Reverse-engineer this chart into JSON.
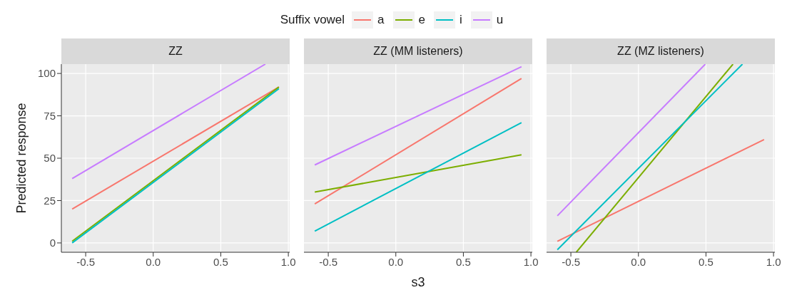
{
  "chart_data": [
    {
      "type": "line",
      "title": "ZZ",
      "ylabel": "Predicted response",
      "legend": "top",
      "legend_title": "Suffix vowel",
      "grid": true,
      "marker": "none",
      "line_style": "solid",
      "xlim": [
        -0.68,
        1.01
      ],
      "ylim": [
        -5.5,
        105.5
      ],
      "xticks": [
        {
          "value": -0.5,
          "label": "-0.5"
        },
        {
          "value": 0,
          "label": "0.0"
        },
        {
          "value": 0.5,
          "label": "0.5"
        },
        {
          "value": 1,
          "label": "1.0"
        }
      ],
      "yticks": [
        0,
        25,
        50,
        75,
        100
      ],
      "series": [
        {
          "name": "a",
          "color": "#f8766d",
          "x": [
            -0.6,
            0.93
          ],
          "values": [
            20,
            92
          ]
        },
        {
          "name": "e",
          "color": "#7cae00",
          "x": [
            -0.6,
            0.93
          ],
          "values": [
            1,
            92
          ]
        },
        {
          "name": "i",
          "color": "#00bfc4",
          "x": [
            -0.6,
            0.93
          ],
          "values": [
            0,
            91
          ]
        },
        {
          "name": "u",
          "color": "#c77cff",
          "x": [
            -0.6,
            0.83
          ],
          "values": [
            38,
            105.5
          ]
        }
      ]
    },
    {
      "type": "line",
      "title": "ZZ (MM listeners)",
      "xlabel": "s3",
      "grid": true,
      "marker": "none",
      "line_style": "solid",
      "tick_labels": "x",
      "xlim": [
        -0.68,
        1.01
      ],
      "ylim": [
        -5.5,
        105.5
      ],
      "xticks": [
        {
          "value": -0.5,
          "label": "-0.5"
        },
        {
          "value": 0,
          "label": "0.0"
        },
        {
          "value": 0.5,
          "label": "0.5"
        },
        {
          "value": 1,
          "label": "1.0"
        }
      ],
      "yticks": [
        0,
        25,
        50,
        75,
        100
      ],
      "series": [
        {
          "color": "#f8766d",
          "x": [
            -0.6,
            0.93
          ],
          "values": [
            23,
            97
          ]
        },
        {
          "color": "#7cae00",
          "x": [
            -0.6,
            0.93
          ],
          "values": [
            30,
            52
          ]
        },
        {
          "color": "#00bfc4",
          "x": [
            -0.6,
            0.93
          ],
          "values": [
            7,
            71
          ]
        },
        {
          "color": "#c77cff",
          "x": [
            -0.6,
            0.93
          ],
          "values": [
            46,
            104
          ]
        }
      ]
    },
    {
      "type": "line",
      "title": "ZZ (MZ listeners)",
      "grid": true,
      "marker": "none",
      "line_style": "solid",
      "tick_labels": "x",
      "xlim": [
        -0.68,
        1.01
      ],
      "ylim": [
        -5.5,
        105.5
      ],
      "xticks": [
        {
          "value": -0.5,
          "label": "-0.5"
        },
        {
          "value": 0,
          "label": "0.0"
        },
        {
          "value": 0.5,
          "label": "0.5"
        },
        {
          "value": 1,
          "label": "1.0"
        }
      ],
      "yticks": [
        0,
        25,
        50,
        75,
        100
      ],
      "series": [
        {
          "color": "#f8766d",
          "x": [
            -0.6,
            0.93
          ],
          "values": [
            1,
            61
          ]
        },
        {
          "color": "#7cae00",
          "x": [
            -0.46,
            0.7
          ],
          "values": [
            -5.5,
            105.5
          ]
        },
        {
          "color": "#00bfc4",
          "x": [
            -0.6,
            0.77
          ],
          "values": [
            -4,
            105.5
          ]
        },
        {
          "color": "#c77cff",
          "x": [
            -0.6,
            0.495
          ],
          "values": [
            16,
            105.5
          ]
        }
      ]
    }
  ]
}
